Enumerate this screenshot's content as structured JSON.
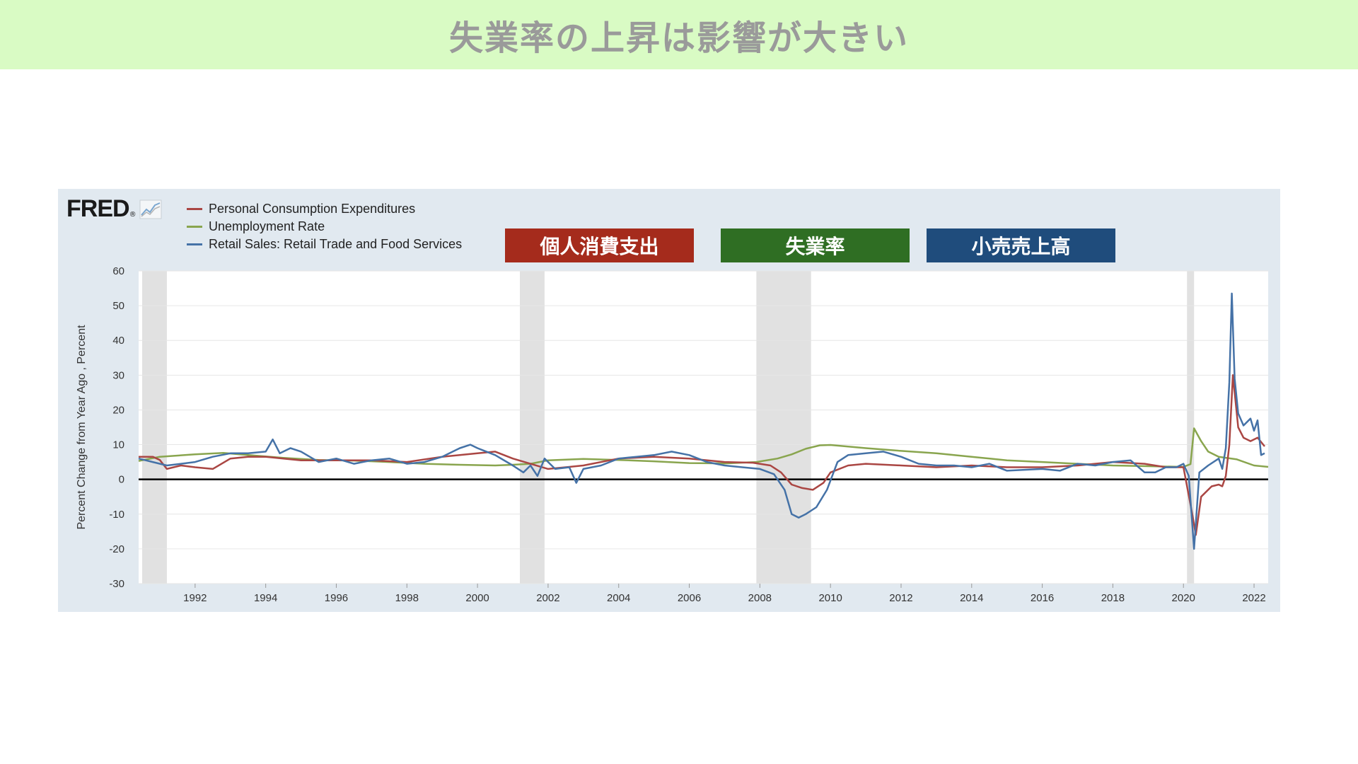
{
  "page": {
    "title": "失業率の上昇は影響が大きい"
  },
  "brand": {
    "logo_text": "FRED",
    "logo_mark": "®"
  },
  "tags": {
    "pce": "個人消費支出",
    "unemployment": "失業率",
    "retail": "小売売上高"
  },
  "colors": {
    "pce": "#aa4643",
    "unemployment": "#89a54e",
    "retail": "#4572a7",
    "recession": "#e1e1e1",
    "grid": "#e6e6e6"
  },
  "chart_data": {
    "type": "line",
    "title": "",
    "ylabel": "Percent Change from Year Ago , Percent",
    "xlabel": "",
    "xlim": [
      1990.4,
      2022.4
    ],
    "ylim": [
      -30,
      60
    ],
    "yticks": [
      -30,
      -20,
      -10,
      0,
      10,
      20,
      30,
      40,
      50,
      60
    ],
    "xticks": [
      1992,
      1994,
      1996,
      1998,
      2000,
      2002,
      2004,
      2006,
      2008,
      2010,
      2012,
      2014,
      2016,
      2018,
      2020,
      2022
    ],
    "grid": true,
    "legend_position": "top-left",
    "recessions": [
      [
        1990.5,
        1991.2
      ],
      [
        2001.2,
        2001.9
      ],
      [
        2007.9,
        2009.45
      ],
      [
        2020.1,
        2020.3
      ]
    ],
    "series": [
      {
        "name": "Personal Consumption Expenditures",
        "points": [
          [
            1990.4,
            6.5
          ],
          [
            1990.8,
            6.5
          ],
          [
            1991.0,
            5.6
          ],
          [
            1991.2,
            3.0
          ],
          [
            1991.6,
            4.0
          ],
          [
            1992.0,
            3.5
          ],
          [
            1992.5,
            3.0
          ],
          [
            1993.0,
            6.0
          ],
          [
            1993.5,
            6.5
          ],
          [
            1994.0,
            6.5
          ],
          [
            1994.5,
            6.0
          ],
          [
            1995.0,
            5.5
          ],
          [
            1996.0,
            5.5
          ],
          [
            1997.0,
            5.5
          ],
          [
            1998.0,
            5.0
          ],
          [
            1999.0,
            6.5
          ],
          [
            2000.0,
            7.5
          ],
          [
            2000.5,
            8.0
          ],
          [
            2001.0,
            6.0
          ],
          [
            2001.5,
            4.5
          ],
          [
            2002.0,
            3.0
          ],
          [
            2002.5,
            3.5
          ],
          [
            2003.0,
            4.0
          ],
          [
            2004.0,
            6.0
          ],
          [
            2005.0,
            6.5
          ],
          [
            2006.0,
            6.0
          ],
          [
            2007.0,
            5.0
          ],
          [
            2007.8,
            4.8
          ],
          [
            2008.3,
            4.0
          ],
          [
            2008.6,
            2.0
          ],
          [
            2008.9,
            -1.5
          ],
          [
            2009.2,
            -2.5
          ],
          [
            2009.5,
            -3.0
          ],
          [
            2009.8,
            -1.0
          ],
          [
            2010.0,
            2.0
          ],
          [
            2010.5,
            4.0
          ],
          [
            2011.0,
            4.5
          ],
          [
            2012.0,
            4.0
          ],
          [
            2013.0,
            3.5
          ],
          [
            2014.0,
            4.0
          ],
          [
            2015.0,
            3.5
          ],
          [
            2016.0,
            3.5
          ],
          [
            2017.0,
            4.0
          ],
          [
            2018.0,
            5.0
          ],
          [
            2018.9,
            4.5
          ],
          [
            2019.5,
            3.5
          ],
          [
            2020.0,
            3.5
          ],
          [
            2020.25,
            -10.0
          ],
          [
            2020.35,
            -16.0
          ],
          [
            2020.5,
            -5.0
          ],
          [
            2020.8,
            -2.0
          ],
          [
            2021.0,
            -1.5
          ],
          [
            2021.1,
            -2.0
          ],
          [
            2021.2,
            1.0
          ],
          [
            2021.3,
            10.0
          ],
          [
            2021.4,
            30.0
          ],
          [
            2021.55,
            15.0
          ],
          [
            2021.7,
            12.0
          ],
          [
            2021.9,
            11.0
          ],
          [
            2022.1,
            12.0
          ],
          [
            2022.3,
            9.5
          ]
        ]
      },
      {
        "name": "Unemployment Rate",
        "points": [
          [
            1990.4,
            5.3
          ],
          [
            1991.0,
            6.5
          ],
          [
            1992.0,
            7.2
          ],
          [
            1992.8,
            7.6
          ],
          [
            1993.5,
            7.0
          ],
          [
            1994.5,
            6.2
          ],
          [
            1995.5,
            5.6
          ],
          [
            1996.5,
            5.4
          ],
          [
            1997.5,
            5.0
          ],
          [
            1998.5,
            4.5
          ],
          [
            1999.5,
            4.2
          ],
          [
            2000.5,
            4.0
          ],
          [
            2001.0,
            4.2
          ],
          [
            2001.5,
            4.5
          ],
          [
            2002.0,
            5.5
          ],
          [
            2003.0,
            5.9
          ],
          [
            2004.0,
            5.6
          ],
          [
            2005.0,
            5.2
          ],
          [
            2006.0,
            4.7
          ],
          [
            2007.0,
            4.6
          ],
          [
            2007.9,
            5.0
          ],
          [
            2008.5,
            6.0
          ],
          [
            2008.9,
            7.2
          ],
          [
            2009.3,
            8.8
          ],
          [
            2009.7,
            9.8
          ],
          [
            2010.0,
            9.9
          ],
          [
            2011.0,
            9.0
          ],
          [
            2012.0,
            8.2
          ],
          [
            2013.0,
            7.5
          ],
          [
            2014.0,
            6.5
          ],
          [
            2015.0,
            5.5
          ],
          [
            2016.0,
            5.0
          ],
          [
            2017.0,
            4.5
          ],
          [
            2018.0,
            4.0
          ],
          [
            2019.0,
            3.8
          ],
          [
            2020.0,
            3.6
          ],
          [
            2020.2,
            4.4
          ],
          [
            2020.3,
            14.7
          ],
          [
            2020.5,
            11.0
          ],
          [
            2020.7,
            8.0
          ],
          [
            2021.0,
            6.5
          ],
          [
            2021.5,
            5.8
          ],
          [
            2022.0,
            4.0
          ],
          [
            2022.4,
            3.6
          ]
        ]
      },
      {
        "name": "Retail Sales: Retail Trade and Food Services",
        "points": [
          [
            1990.4,
            6.0
          ],
          [
            1990.8,
            5.0
          ],
          [
            1991.2,
            4.0
          ],
          [
            1991.6,
            4.5
          ],
          [
            1992.0,
            5.0
          ],
          [
            1992.5,
            6.5
          ],
          [
            1993.0,
            7.5
          ],
          [
            1993.5,
            7.5
          ],
          [
            1994.0,
            8.0
          ],
          [
            1994.2,
            11.5
          ],
          [
            1994.4,
            7.5
          ],
          [
            1994.7,
            9.0
          ],
          [
            1995.0,
            8.0
          ],
          [
            1995.5,
            5.0
          ],
          [
            1996.0,
            6.0
          ],
          [
            1996.5,
            4.5
          ],
          [
            1997.0,
            5.5
          ],
          [
            1997.5,
            6.0
          ],
          [
            1998.0,
            4.5
          ],
          [
            1998.5,
            5.0
          ],
          [
            1999.0,
            6.5
          ],
          [
            1999.5,
            9.0
          ],
          [
            1999.8,
            10.0
          ],
          [
            2000.0,
            9.0
          ],
          [
            2000.5,
            7.0
          ],
          [
            2001.0,
            4.0
          ],
          [
            2001.3,
            2.0
          ],
          [
            2001.5,
            4.0
          ],
          [
            2001.7,
            1.0
          ],
          [
            2001.9,
            6.0
          ],
          [
            2002.2,
            3.0
          ],
          [
            2002.6,
            3.5
          ],
          [
            2002.8,
            -1.0
          ],
          [
            2003.0,
            3.0
          ],
          [
            2003.5,
            4.0
          ],
          [
            2004.0,
            6.0
          ],
          [
            2004.5,
            6.5
          ],
          [
            2005.0,
            7.0
          ],
          [
            2005.5,
            8.0
          ],
          [
            2006.0,
            7.0
          ],
          [
            2006.5,
            5.0
          ],
          [
            2007.0,
            4.0
          ],
          [
            2007.5,
            3.5
          ],
          [
            2008.0,
            3.0
          ],
          [
            2008.4,
            1.5
          ],
          [
            2008.7,
            -3.0
          ],
          [
            2008.9,
            -10.0
          ],
          [
            2009.1,
            -11.0
          ],
          [
            2009.3,
            -10.0
          ],
          [
            2009.6,
            -8.0
          ],
          [
            2009.9,
            -3.0
          ],
          [
            2010.2,
            5.0
          ],
          [
            2010.5,
            7.0
          ],
          [
            2011.0,
            7.5
          ],
          [
            2011.5,
            8.0
          ],
          [
            2012.0,
            6.5
          ],
          [
            2012.5,
            4.5
          ],
          [
            2013.0,
            4.0
          ],
          [
            2013.5,
            4.0
          ],
          [
            2014.0,
            3.5
          ],
          [
            2014.5,
            4.5
          ],
          [
            2015.0,
            2.5
          ],
          [
            2016.0,
            3.0
          ],
          [
            2016.5,
            2.5
          ],
          [
            2017.0,
            4.5
          ],
          [
            2017.5,
            4.0
          ],
          [
            2018.0,
            5.0
          ],
          [
            2018.5,
            5.5
          ],
          [
            2018.9,
            2.0
          ],
          [
            2019.2,
            2.0
          ],
          [
            2019.5,
            3.5
          ],
          [
            2019.8,
            3.5
          ],
          [
            2020.0,
            4.5
          ],
          [
            2020.15,
            1.0
          ],
          [
            2020.3,
            -20.0
          ],
          [
            2020.45,
            2.0
          ],
          [
            2020.7,
            4.0
          ],
          [
            2021.0,
            6.0
          ],
          [
            2021.1,
            3.0
          ],
          [
            2021.2,
            9.0
          ],
          [
            2021.3,
            28.0
          ],
          [
            2021.37,
            53.5
          ],
          [
            2021.45,
            29.0
          ],
          [
            2021.55,
            19.0
          ],
          [
            2021.7,
            15.5
          ],
          [
            2021.9,
            17.5
          ],
          [
            2022.0,
            14.0
          ],
          [
            2022.1,
            17.0
          ],
          [
            2022.2,
            7.0
          ],
          [
            2022.3,
            7.5
          ]
        ]
      }
    ]
  }
}
